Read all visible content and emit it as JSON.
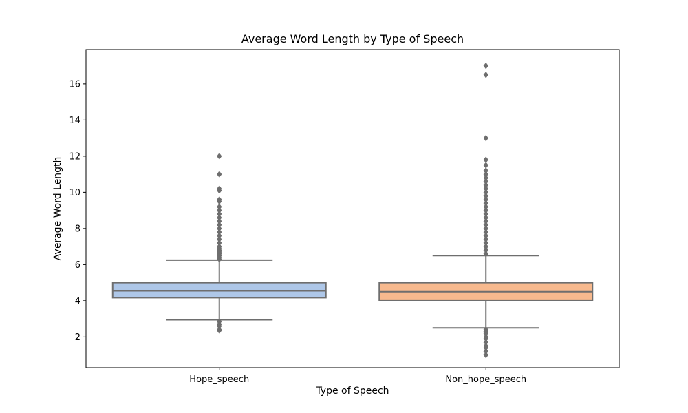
{
  "chart_data": {
    "type": "box",
    "title": "Average Word Length by Type of Speech",
    "xlabel": "Type of Speech",
    "ylabel": "Average Word Length",
    "ylim": [
      0.3,
      17.9
    ],
    "yticks": [
      2,
      4,
      6,
      8,
      10,
      12,
      14,
      16
    ],
    "grid": false,
    "categories": [
      "Hope_speech",
      "Non_hope_speech"
    ],
    "boxes": [
      {
        "category": "Hope_speech",
        "color": "#aec7e8",
        "whisker_low": 2.95,
        "q1": 4.17,
        "median": 4.55,
        "q3": 5.0,
        "whisker_high": 6.25,
        "outliers_high": [
          6.3,
          6.4,
          6.5,
          6.6,
          6.7,
          6.8,
          6.9,
          7.0,
          7.2,
          7.4,
          7.6,
          7.8,
          8.0,
          8.2,
          8.4,
          8.6,
          8.8,
          9.0,
          9.2,
          9.5,
          9.6,
          10.1,
          10.2,
          11.0,
          12.0
        ],
        "outliers_low": [
          2.85,
          2.7,
          2.6,
          2.4,
          2.35
        ]
      },
      {
        "category": "Non_hope_speech",
        "color": "#f7b98e",
        "whisker_low": 2.5,
        "q1": 4.0,
        "median": 4.5,
        "q3": 5.0,
        "whisker_high": 6.5,
        "outliers_high": [
          6.6,
          6.8,
          7.0,
          7.2,
          7.4,
          7.6,
          7.8,
          8.0,
          8.2,
          8.4,
          8.6,
          8.8,
          9.0,
          9.2,
          9.4,
          9.6,
          9.8,
          10.0,
          10.2,
          10.4,
          10.6,
          10.8,
          11.0,
          11.2,
          11.5,
          11.8,
          13.0,
          16.5,
          17.0
        ],
        "outliers_low": [
          2.4,
          2.3,
          2.2,
          2.0,
          1.9,
          1.7,
          1.5,
          1.4,
          1.2,
          1.0
        ]
      }
    ]
  }
}
